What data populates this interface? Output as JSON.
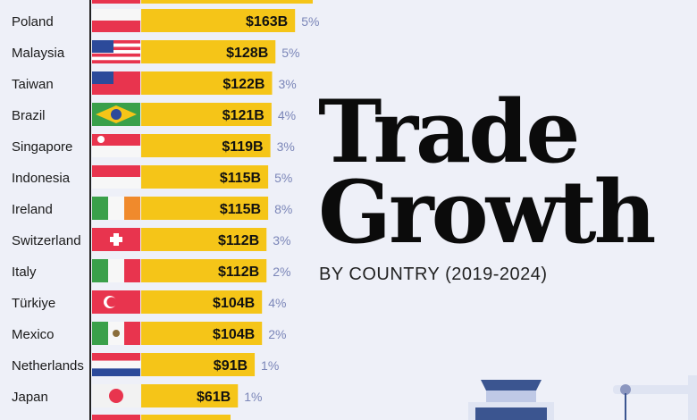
{
  "title_line1": "Trade",
  "title_line2": "Growth",
  "subtitle": "BY COUNTRY (2019-2024)",
  "colors": {
    "bar": "#f5c518",
    "pct": "#7b86b8",
    "background": "#eef0f8"
  },
  "chart_data": {
    "type": "bar",
    "orientation": "horizontal",
    "title": "Trade Growth by Country (2019-2024)",
    "categories": [
      "Poland",
      "Malaysia",
      "Taiwan",
      "Brazil",
      "Singapore",
      "Indonesia",
      "Ireland",
      "Switzerland",
      "Italy",
      "Türkiye",
      "Mexico",
      "Netherlands",
      "Japan"
    ],
    "values": [
      163,
      128,
      122,
      121,
      119,
      115,
      115,
      112,
      112,
      104,
      104,
      91,
      61
    ],
    "value_labels": [
      "$163B",
      "$128B",
      "$122B",
      "$121B",
      "$119B",
      "$115B",
      "$115B",
      "$112B",
      "$112B",
      "$104B",
      "$104B",
      "$91B",
      "$61B"
    ],
    "growth_labels": [
      "5%",
      "5%",
      "3%",
      "4%",
      "3%",
      "5%",
      "8%",
      "3%",
      "2%",
      "4%",
      "2%",
      "1%",
      "1%"
    ],
    "unit": "USD billions"
  }
}
